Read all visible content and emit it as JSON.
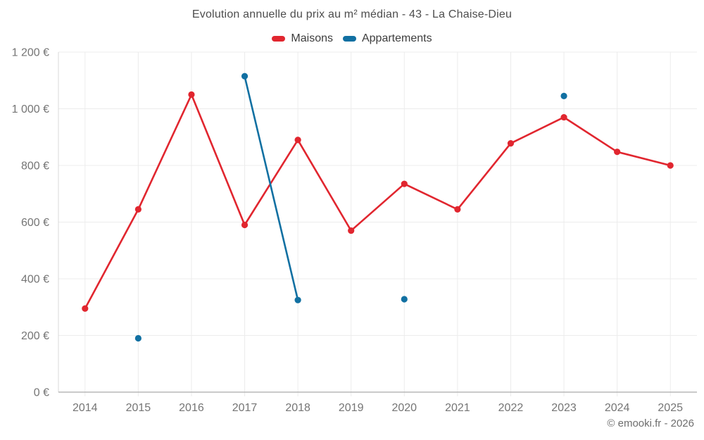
{
  "footer": "© emooki.fr - 2026",
  "colors": {
    "maisons_red": "#e1262f",
    "appartements_blue": "#1170a2",
    "gridline": "#ececec",
    "x_axis": "#ababab",
    "y_axis": "#d9d9d9",
    "tick_text": "#757575",
    "title_text": "#4d4d4d"
  },
  "chart_data": {
    "type": "line",
    "title": "Evolution annuelle du prix au m² médian - 43 - La Chaise-Dieu",
    "categories": [
      "2014",
      "2015",
      "2016",
      "2017",
      "2018",
      "2019",
      "2020",
      "2021",
      "2022",
      "2023",
      "2024",
      "2025"
    ],
    "series": [
      {
        "name": "Maisons",
        "color": "#e1262f",
        "values": [
          295,
          645,
          1050,
          590,
          890,
          570,
          735,
          645,
          878,
          970,
          848,
          800
        ]
      },
      {
        "name": "Appartements",
        "color": "#1170a2",
        "values": [
          null,
          190,
          null,
          1115,
          325,
          null,
          328,
          null,
          null,
          1045,
          null,
          null
        ]
      }
    ],
    "xlabel": "",
    "ylabel": "",
    "ylim": [
      0,
      1200
    ],
    "y_ticks": [
      0,
      200,
      400,
      600,
      800,
      1000,
      1200
    ],
    "y_tick_labels": [
      "0 €",
      "200 €",
      "400 €",
      "600 €",
      "800 €",
      "1 000 €",
      "1 200 €"
    ],
    "grid": true,
    "legend_position": "top",
    "markers": true
  }
}
